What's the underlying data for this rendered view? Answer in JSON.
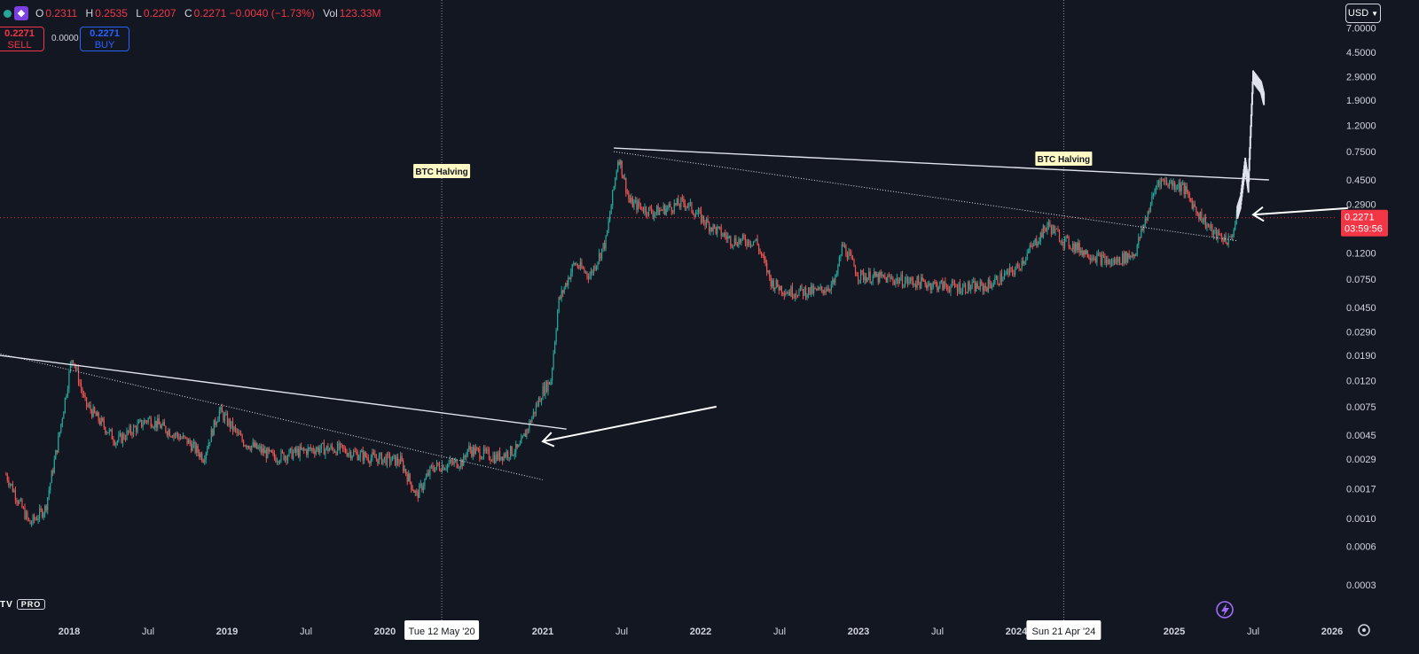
{
  "header": {
    "ohlc": [
      {
        "key": "O",
        "value": "0.2311"
      },
      {
        "key": "H",
        "value": "0.2535"
      },
      {
        "key": "L",
        "value": "0.2207"
      },
      {
        "key": "C",
        "value": "0.2271 −0.0040 (−1.73%)"
      },
      {
        "key": "Vol",
        "value": "123.33M"
      }
    ],
    "sell_price": "0.2271",
    "sell_label": "SELL",
    "spread": "0.0000",
    "buy_price": "0.2271",
    "buy_label": "BUY",
    "currency": "USD",
    "brand": "TV",
    "brand_tier": "PRO"
  },
  "colors": {
    "up": "#26a69a",
    "down": "#ef5350",
    "background": "#131722",
    "price_tag": "#f23645",
    "text": "#d1d4dc"
  },
  "icons": [
    "indicator-dot-icon",
    "symbol-logo-icon",
    "chevron-down-icon",
    "settings-gear-icon",
    "lightning-assistant-icon"
  ],
  "chart_data": {
    "type": "candlestick",
    "scale": "log",
    "y_ticks": [
      "7.0000",
      "4.5000",
      "2.9000",
      "1.9000",
      "1.2000",
      "0.7500",
      "0.4500",
      "0.2900",
      "0.1200",
      "0.0750",
      "0.0450",
      "0.0290",
      "0.0190",
      "0.0120",
      "0.0075",
      "0.0045",
      "0.0029",
      "0.0017",
      "0.0010",
      "0.0006",
      "0.0003"
    ],
    "x_ticks": [
      {
        "label": "2018",
        "t": 2018.0
      },
      {
        "label": "Jul",
        "t": 2018.5
      },
      {
        "label": "2019",
        "t": 2019.0
      },
      {
        "label": "Jul",
        "t": 2019.5
      },
      {
        "label": "2020",
        "t": 2020.0
      },
      {
        "label": "2021",
        "t": 2021.0
      },
      {
        "label": "Jul",
        "t": 2021.5
      },
      {
        "label": "2022",
        "t": 2022.0
      },
      {
        "label": "Jul",
        "t": 2022.5
      },
      {
        "label": "2023",
        "t": 2023.0
      },
      {
        "label": "Jul",
        "t": 2023.5
      },
      {
        "label": "2024",
        "t": 2024.0
      },
      {
        "label": "2025",
        "t": 2025.0
      },
      {
        "label": "Jul",
        "t": 2025.5
      },
      {
        "label": "2026",
        "t": 2026.0
      }
    ],
    "crosshair_labels": [
      {
        "label": "Tue 12 May '20",
        "t": 2020.36
      },
      {
        "label": "Sun 21 Apr '24",
        "t": 2024.3
      }
    ],
    "annotations": [
      {
        "text": "BTC Halving",
        "t": 2020.36,
        "price": 0.52
      },
      {
        "text": "BTC Halving",
        "t": 2024.3,
        "price": 0.65
      }
    ],
    "last_price": {
      "price": 0.2271,
      "label": "0.2271",
      "countdown": "03:59:56"
    },
    "price_anchors": [
      [
        2017.6,
        0.0022
      ],
      [
        2017.75,
        0.0009
      ],
      [
        2017.85,
        0.0012
      ],
      [
        2017.93,
        0.004
      ],
      [
        2018.02,
        0.019
      ],
      [
        2018.1,
        0.008
      ],
      [
        2018.3,
        0.004
      ],
      [
        2018.5,
        0.006
      ],
      [
        2018.75,
        0.004
      ],
      [
        2018.85,
        0.003
      ],
      [
        2018.95,
        0.007
      ],
      [
        2019.1,
        0.004
      ],
      [
        2019.3,
        0.003
      ],
      [
        2019.55,
        0.0035
      ],
      [
        2019.7,
        0.0035
      ],
      [
        2019.9,
        0.003
      ],
      [
        2020.1,
        0.0028
      ],
      [
        2020.2,
        0.0015
      ],
      [
        2020.3,
        0.0025
      ],
      [
        2020.5,
        0.0028
      ],
      [
        2020.52,
        0.0035
      ],
      [
        2020.7,
        0.003
      ],
      [
        2020.85,
        0.0035
      ],
      [
        2021.0,
        0.01
      ],
      [
        2021.05,
        0.012
      ],
      [
        2021.1,
        0.05
      ],
      [
        2021.2,
        0.1
      ],
      [
        2021.3,
        0.08
      ],
      [
        2021.4,
        0.15
      ],
      [
        2021.48,
        0.7
      ],
      [
        2021.55,
        0.3
      ],
      [
        2021.7,
        0.25
      ],
      [
        2021.9,
        0.3
      ],
      [
        2022.05,
        0.2
      ],
      [
        2022.2,
        0.15
      ],
      [
        2022.35,
        0.15
      ],
      [
        2022.45,
        0.07
      ],
      [
        2022.55,
        0.06
      ],
      [
        2022.75,
        0.06
      ],
      [
        2022.85,
        0.07
      ],
      [
        2022.9,
        0.14
      ],
      [
        2023.0,
        0.08
      ],
      [
        2023.2,
        0.075
      ],
      [
        2023.4,
        0.07
      ],
      [
        2023.6,
        0.065
      ],
      [
        2023.8,
        0.065
      ],
      [
        2024.0,
        0.09
      ],
      [
        2024.2,
        0.2
      ],
      [
        2024.3,
        0.15
      ],
      [
        2024.45,
        0.12
      ],
      [
        2024.6,
        0.1
      ],
      [
        2024.75,
        0.12
      ],
      [
        2024.9,
        0.45
      ],
      [
        2025.05,
        0.4
      ],
      [
        2025.15,
        0.25
      ],
      [
        2025.25,
        0.17
      ],
      [
        2025.35,
        0.15
      ],
      [
        2025.4,
        0.2271
      ]
    ],
    "projection": [
      [
        2025.4,
        0.25
      ],
      [
        2025.42,
        0.3
      ],
      [
        2025.45,
        0.6
      ],
      [
        2025.47,
        0.4
      ],
      [
        2025.5,
        2.9
      ],
      [
        2025.55,
        2.4
      ],
      [
        2025.57,
        1.9
      ]
    ],
    "trendlines": [
      {
        "style": "solid",
        "from": [
          2017.55,
          0.019
        ],
        "to": [
          2021.15,
          0.005
        ]
      },
      {
        "style": "dotted",
        "from": [
          2017.45,
          0.021
        ],
        "to": [
          2021.0,
          0.002
        ]
      },
      {
        "style": "solid",
        "from": [
          2021.45,
          0.8
        ],
        "to": [
          2025.6,
          0.45
        ]
      },
      {
        "style": "dotted",
        "from": [
          2021.45,
          0.75
        ],
        "to": [
          2025.4,
          0.15
        ]
      }
    ],
    "arrows": [
      {
        "from": [
          2022.1,
          0.0075
        ],
        "to": [
          2021.0,
          0.004
        ]
      },
      {
        "from": [
          2026.1,
          0.27
        ],
        "to": [
          2025.5,
          0.24
        ]
      }
    ]
  }
}
